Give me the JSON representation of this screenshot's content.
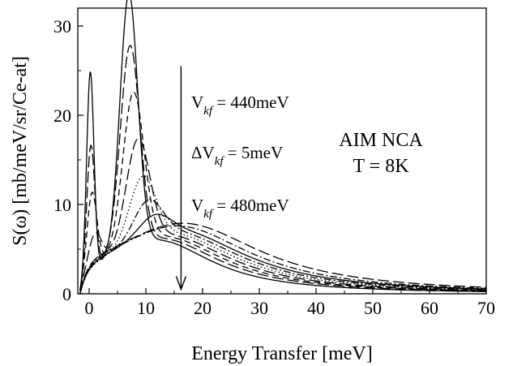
{
  "chart_data": {
    "type": "line",
    "title": "",
    "xlabel": "Energy Transfer [meV]",
    "ylabel": "S(ω) [mb/meV/sr/Ce-at]",
    "xlim": [
      -2,
      70
    ],
    "ylim": [
      0,
      32
    ],
    "xticks": [
      "0",
      "10",
      "20",
      "30",
      "40",
      "50",
      "60",
      "70"
    ],
    "yticks": [
      "0",
      "10",
      "20",
      "30"
    ],
    "grid": false,
    "legend": "none",
    "series": [
      {
        "peaks": [
          {
            "e": 0.2,
            "a": 22.5,
            "w": 0.9
          },
          {
            "e": 7.0,
            "a": 28.5,
            "w": 2.2
          }
        ],
        "tail_center": 12.0,
        "tail_width": 12.0,
        "tail_amp": 6.0,
        "style": "solid"
      },
      {
        "peaks": [
          {
            "e": 0.3,
            "a": 14.0,
            "w": 1.0
          },
          {
            "e": 7.2,
            "a": 22.5,
            "w": 2.4
          }
        ],
        "tail_center": 12.5,
        "tail_width": 13.0,
        "tail_amp": 6.2,
        "style": "long-dash"
      },
      {
        "peaks": [
          {
            "e": 0.5,
            "a": 8.5,
            "w": 1.2
          },
          {
            "e": 7.8,
            "a": 17.0,
            "w": 2.6
          }
        ],
        "tail_center": 13.0,
        "tail_width": 13.5,
        "tail_amp": 6.4,
        "style": "dash"
      },
      {
        "peaks": [
          {
            "e": 1.0,
            "a": 3.5,
            "w": 1.6
          },
          {
            "e": 8.6,
            "a": 11.5,
            "w": 2.9
          }
        ],
        "tail_center": 13.5,
        "tail_width": 14.0,
        "tail_amp": 6.6,
        "style": "long-dash"
      },
      {
        "peaks": [
          {
            "e": 9.4,
            "a": 7.0,
            "w": 3.2
          }
        ],
        "tail_center": 14.0,
        "tail_width": 14.5,
        "tail_amp": 6.8,
        "style": "dot"
      },
      {
        "peaks": [
          {
            "e": 10.4,
            "a": 4.0,
            "w": 3.5
          }
        ],
        "tail_center": 14.5,
        "tail_width": 15.0,
        "tail_amp": 7.0,
        "style": "dash-dot"
      },
      {
        "peaks": [
          {
            "e": 11.5,
            "a": 2.0,
            "w": 3.8
          }
        ],
        "tail_center": 15.0,
        "tail_width": 15.5,
        "tail_amp": 7.2,
        "style": "solid"
      },
      {
        "peaks": [],
        "tail_center": 15.5,
        "tail_width": 16.0,
        "tail_amp": 7.6,
        "style": "dash-dot"
      },
      {
        "peaks": [],
        "tail_center": 16.5,
        "tail_width": 17.0,
        "tail_amp": 7.9,
        "style": "long-dash"
      }
    ],
    "annotations": {
      "vkf_top_prefix": "V",
      "vkf_top_sub": "kf",
      "vkf_top_value": " = 440meV",
      "dvkf_prefix": "ΔV",
      "dvkf_sub": "kf",
      "dvkf_value": " = 5meV",
      "vkf_bottom_prefix": "V",
      "vkf_bottom_sub": "kf",
      "vkf_bottom_value": " = 480meV",
      "model": "AIM NCA",
      "temperature": "T = 8K"
    },
    "arrow": {
      "x": 16.2,
      "y_start": 25.5,
      "y_end": 0.5
    }
  }
}
